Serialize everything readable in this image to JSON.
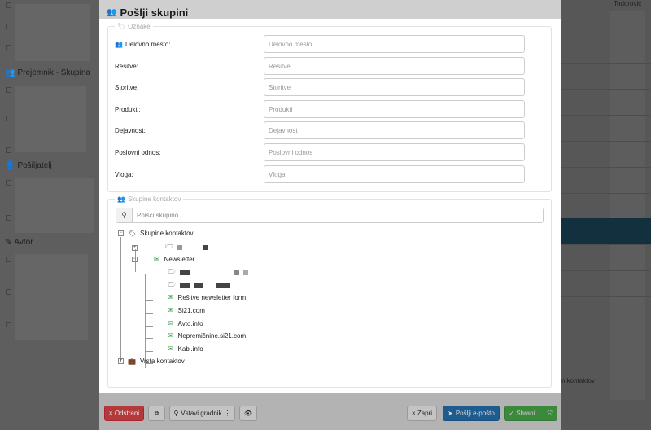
{
  "background": {
    "left_sections": [
      {
        "icon": "users-icon",
        "label": "Prejemnik - Skupina"
      },
      {
        "icon": "user-icon",
        "label": "Pošiljatelj"
      },
      {
        "icon": "pencil-icon",
        "label": "Avtor"
      }
    ],
    "right_header": "Todorović",
    "right_footer": "n kontaktov"
  },
  "modal": {
    "title": "Pošlji skupini",
    "title_icon": "users-icon",
    "tags": {
      "legend": "Oznake",
      "fields": [
        {
          "label": "Delovno mesto:",
          "placeholder": "Delovno mesto",
          "icon": "users-icon"
        },
        {
          "label": "Rešitve:",
          "placeholder": "Rešitve"
        },
        {
          "label": "Storitve:",
          "placeholder": "Storitve"
        },
        {
          "label": "Produkti:",
          "placeholder": "Produkti"
        },
        {
          "label": "Dejavnost:",
          "placeholder": "Dejavnost"
        },
        {
          "label": "Poslovni odnos:",
          "placeholder": "Poslovni odnos"
        },
        {
          "label": "Vloga:",
          "placeholder": "Vloga"
        }
      ]
    },
    "groups": {
      "legend": "Skupine kontaktov",
      "search_placeholder": "Poišči skupino...",
      "tree": {
        "root": "Skupine kontaktov",
        "newsletter": "Newsletter",
        "items": [
          "Rešitve newsletter form",
          "Si21.com",
          "Avto.info",
          "Nepremičnine.si21.com",
          "Kabi.info"
        ],
        "second_root": "Vrsta kontaktov"
      }
    },
    "footer": {
      "delete": "× Odstrani",
      "insert_block": "Vstavi gradnik",
      "close": "× Zapri",
      "send": "Pošlji e-pošto",
      "save": "✓ Shrani"
    },
    "colors": {
      "delete": "#b33a3a",
      "send": "#1e5b8f",
      "save": "#3b8a3c"
    }
  }
}
